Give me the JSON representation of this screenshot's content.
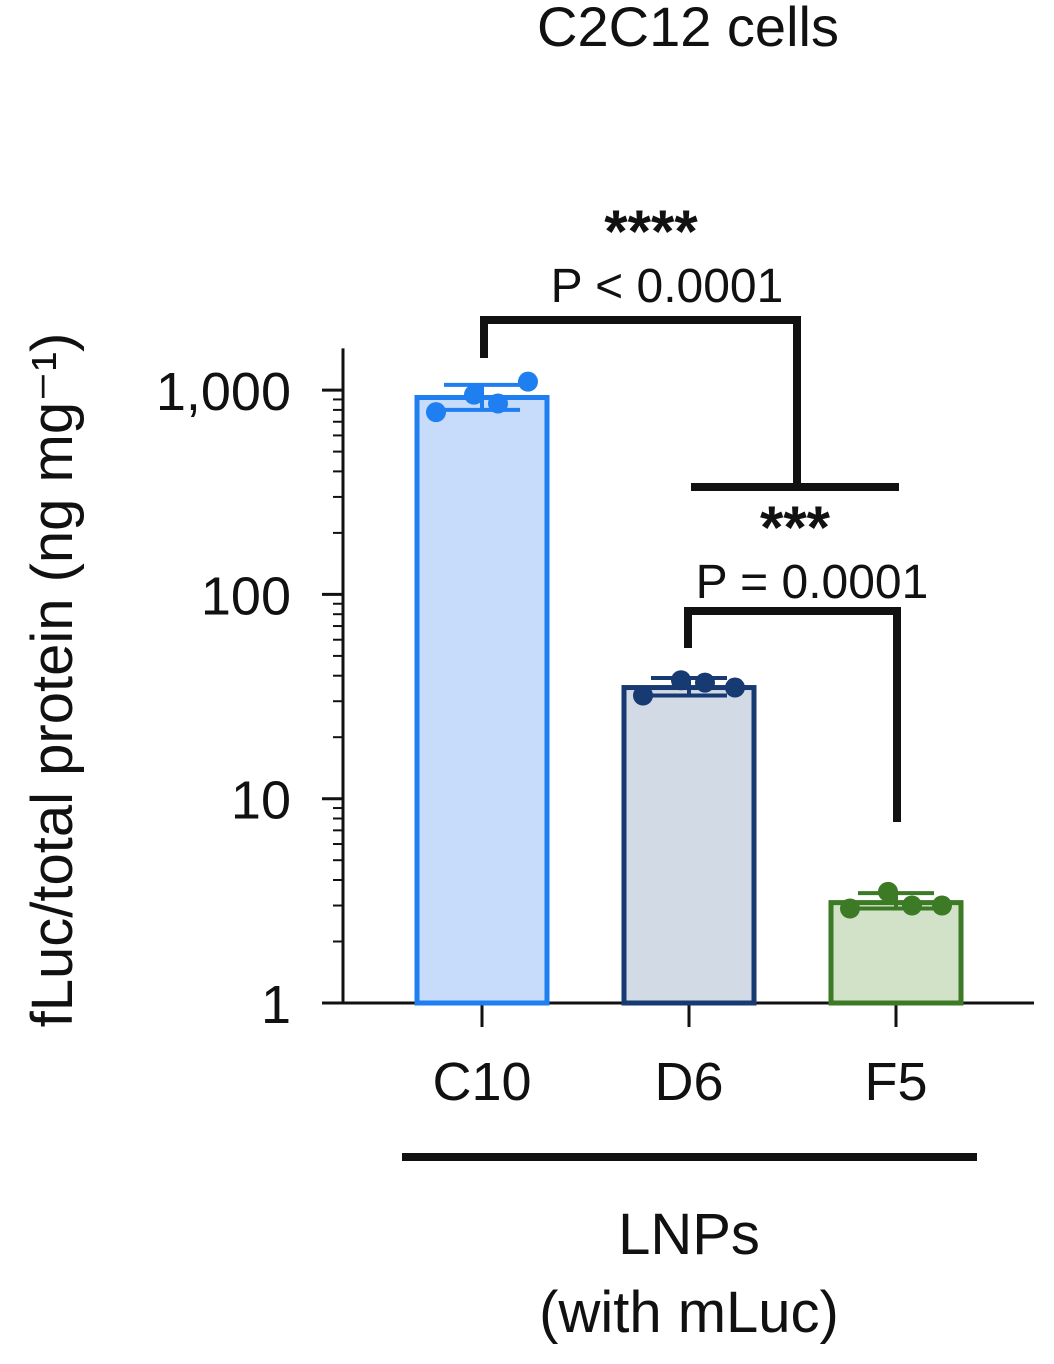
{
  "chart_data": {
    "type": "bar",
    "title": "C2C12 cells",
    "ylabel": "fLuc/total protein (ng mg⁻¹)",
    "xlabel": "LNPs",
    "xlabel_sub": "(with mLuc)",
    "y_scale": "log",
    "ylim": [
      1,
      1600
    ],
    "y_ticks": [
      {
        "value": 1,
        "label": "1"
      },
      {
        "value": 10,
        "label": "10"
      },
      {
        "value": 100,
        "label": "100"
      },
      {
        "value": 1000,
        "label": "1,000"
      }
    ],
    "categories": [
      "C10",
      "D6",
      "F5"
    ],
    "values": [
      920,
      35,
      3.1
    ],
    "error_high": [
      1060,
      39,
      3.45
    ],
    "error_low": [
      800,
      32,
      2.9
    ],
    "points": [
      [
        780,
        950,
        1100,
        860
      ],
      [
        32,
        38,
        35,
        37
      ],
      [
        2.9,
        3.5,
        3.0,
        3.0
      ]
    ],
    "colors": {
      "stroke": [
        "#1f7ef0",
        "#173a73",
        "#3c7a26"
      ],
      "fill": [
        "#c6dcfa",
        "#d1dae5",
        "#d2e2c8"
      ]
    },
    "grid": false,
    "legend": "none",
    "annotations": [
      {
        "stars": "****",
        "p_text": "P < 0.0001"
      },
      {
        "stars": "***",
        "p_text": "P = 0.0001"
      }
    ]
  }
}
